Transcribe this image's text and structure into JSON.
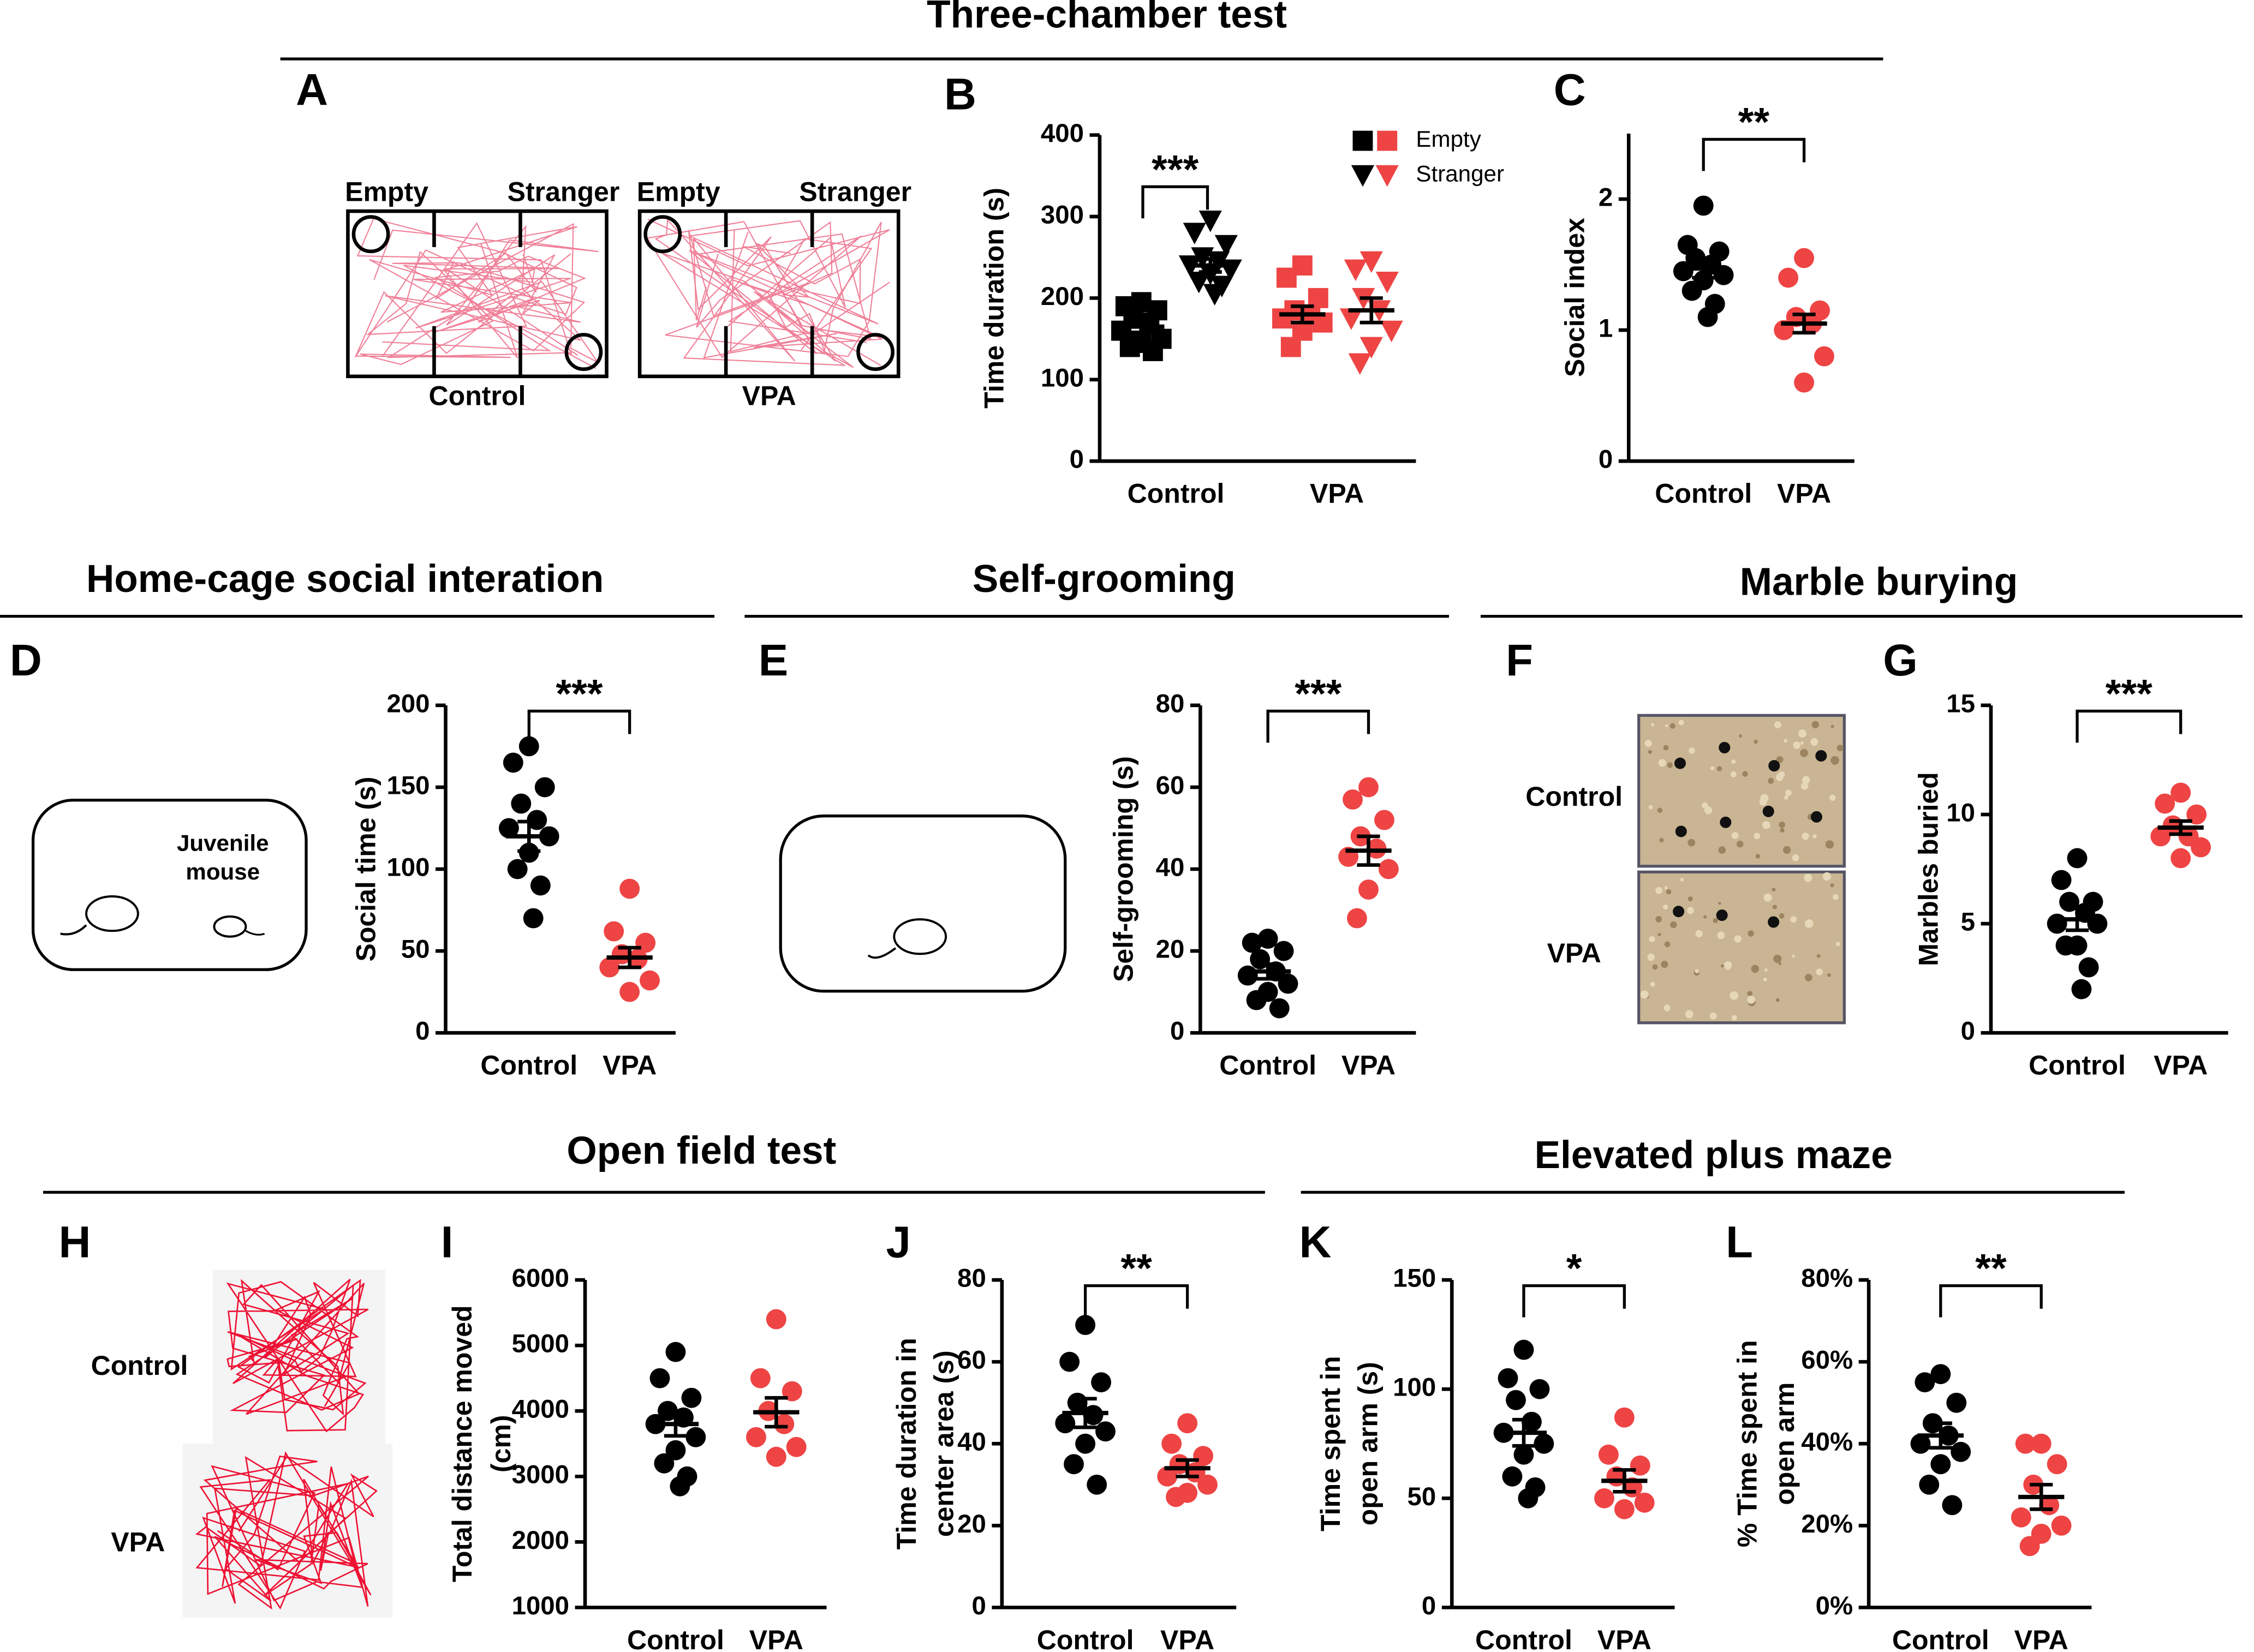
{
  "figure": {
    "sections": [
      "Three-chamber test",
      "Home-cage social interation",
      "Self-grooming",
      "Marble burying",
      "Open field test",
      "Elevated plus maze"
    ],
    "panels": {
      "A": {
        "letter": "A",
        "left": "Empty",
        "right": "Stranger",
        "captions": [
          "Control",
          "VPA"
        ]
      },
      "D": {
        "letter": "D",
        "label": [
          "Juvenile",
          "mouse"
        ]
      },
      "E": {
        "letter": "E"
      },
      "F": {
        "letter": "F",
        "rows": [
          "Control",
          "VPA"
        ]
      },
      "H": {
        "letter": "H",
        "rows": [
          "Control",
          "VPA"
        ]
      }
    }
  },
  "chart_data": [
    {
      "type": "dot",
      "panel": "B",
      "ylabel": [
        "Time duration (s)"
      ],
      "categories": [
        "Control",
        "VPA"
      ],
      "ylim": [
        0,
        400
      ],
      "yticks": [
        0,
        100,
        200,
        300,
        400
      ],
      "significance": "***",
      "series": [
        {
          "name": "Empty",
          "marker": "square",
          "colors": [
            "#000000",
            "#ee4444"
          ],
          "values": [
            [
              195,
              190,
              185,
              175,
              170,
              160,
              150,
              145,
              140,
              135
            ],
            [
              240,
              225,
              200,
              185,
              180,
              175,
              170,
              160,
              140
            ]
          ],
          "mean": [
            165,
            180
          ],
          "sem": [
            7,
            10
          ]
        },
        {
          "name": "Stranger",
          "marker": "triangle",
          "colors": [
            "#000000",
            "#ee4444"
          ],
          "values": [
            [
              295,
              280,
              265,
              250,
              245,
              240,
              235,
              230,
              220,
              215,
              205
            ],
            [
              245,
              235,
              220,
              200,
              185,
              175,
              160,
              140,
              120
            ]
          ],
          "mean": [
            240,
            185
          ],
          "sem": [
            8,
            15
          ]
        }
      ]
    },
    {
      "type": "dot",
      "panel": "C",
      "ylabel": [
        "Social index"
      ],
      "categories": [
        "Control",
        "VPA"
      ],
      "ylim": [
        0,
        2.5
      ],
      "yticks": [
        0,
        1,
        2
      ],
      "significance": "**",
      "series": [
        {
          "marker": "circle",
          "colors": [
            "#000000",
            "#ee4444"
          ],
          "values": [
            [
              1.95,
              1.65,
              1.6,
              1.55,
              1.5,
              1.45,
              1.42,
              1.38,
              1.3,
              1.2,
              1.1
            ],
            [
              1.55,
              1.4,
              1.15,
              1.1,
              1.05,
              1.0,
              0.8,
              0.6
            ]
          ],
          "mean": [
            1.47,
            1.05
          ],
          "sem": [
            0.07,
            0.07
          ]
        }
      ]
    },
    {
      "type": "dot",
      "panel": "D",
      "ylabel": [
        "Social time (s)"
      ],
      "categories": [
        "Control",
        "VPA"
      ],
      "ylim": [
        0,
        200
      ],
      "yticks": [
        0,
        50,
        100,
        150,
        200
      ],
      "significance": "***",
      "series": [
        {
          "marker": "circle",
          "colors": [
            "#000000",
            "#ee4444"
          ],
          "values": [
            [
              175,
              165,
              150,
              140,
              130,
              125,
              120,
              110,
              100,
              90,
              70
            ],
            [
              88,
              62,
              55,
              48,
              45,
              40,
              32,
              25
            ]
          ],
          "mean": [
            120,
            46
          ],
          "sem": [
            9,
            6
          ]
        }
      ]
    },
    {
      "type": "dot",
      "panel": "E",
      "ylabel": [
        "Self-grooming (s)"
      ],
      "categories": [
        "Control",
        "VPA"
      ],
      "ylim": [
        0,
        80
      ],
      "yticks": [
        0,
        20,
        40,
        60,
        80
      ],
      "significance": "***",
      "series": [
        {
          "marker": "circle",
          "colors": [
            "#000000",
            "#ee4444"
          ],
          "values": [
            [
              23,
              22,
              20,
              18,
              15,
              14,
              12,
              10,
              8,
              6
            ],
            [
              60,
              57,
              52,
              48,
              45,
              43,
              40,
              35,
              28
            ]
          ],
          "mean": [
            15,
            44.5
          ],
          "sem": [
            1.8,
            3.5
          ]
        }
      ]
    },
    {
      "type": "dot",
      "panel": "G",
      "ylabel": [
        "Marbles buried"
      ],
      "categories": [
        "Control",
        "VPA"
      ],
      "ylim": [
        0,
        15
      ],
      "yticks": [
        0,
        5,
        10,
        15
      ],
      "significance": "***",
      "series": [
        {
          "marker": "circle",
          "colors": [
            "#000000",
            "#ee4444"
          ],
          "values": [
            [
              8,
              7,
              6,
              6,
              5.5,
              5,
              5,
              4,
              4,
              3,
              2
            ],
            [
              11,
              10.5,
              10,
              9.5,
              9,
              9,
              8.5,
              8
            ]
          ],
          "mean": [
            5.2,
            9.4
          ],
          "sem": [
            0.5,
            0.3
          ]
        }
      ]
    },
    {
      "type": "dot",
      "panel": "I",
      "ylabel": [
        "Total distance moved",
        "(cm)"
      ],
      "categories": [
        "Control",
        "VPA"
      ],
      "ylim": [
        1000,
        6000
      ],
      "yticks": [
        1000,
        2000,
        3000,
        4000,
        5000,
        6000
      ],
      "series": [
        {
          "marker": "circle",
          "colors": [
            "#000000",
            "#ee4444"
          ],
          "values": [
            [
              4900,
              4500,
              4200,
              4000,
              3900,
              3800,
              3600,
              3400,
              3200,
              3000,
              2850
            ],
            [
              5400,
              4500,
              4300,
              4000,
              3800,
              3600,
              3450,
              3300
            ]
          ],
          "mean": [
            3800,
            3980
          ],
          "sem": [
            180,
            220
          ]
        }
      ]
    },
    {
      "type": "dot",
      "panel": "J",
      "ylabel": [
        "Time duration in",
        "center area (s)"
      ],
      "categories": [
        "Control",
        "VPA"
      ],
      "ylim": [
        0,
        80
      ],
      "yticks": [
        0,
        20,
        40,
        60,
        80
      ],
      "significance": "**",
      "series": [
        {
          "marker": "circle",
          "colors": [
            "#000000",
            "#ee4444"
          ],
          "values": [
            [
              69,
              60,
              55,
              50,
              47,
              45,
              43,
              40,
              35,
              30
            ],
            [
              45,
              40,
              37,
              35,
              33,
              32,
              30,
              28,
              27
            ]
          ],
          "mean": [
            47.5,
            34
          ],
          "sem": [
            3.5,
            2
          ]
        }
      ]
    },
    {
      "type": "dot",
      "panel": "K",
      "ylabel": [
        "Time spent in",
        "open arm (s)"
      ],
      "categories": [
        "Control",
        "VPA"
      ],
      "ylim": [
        0,
        150
      ],
      "yticks": [
        0,
        50,
        100,
        150
      ],
      "significance": "*",
      "series": [
        {
          "marker": "circle",
          "colors": [
            "#000000",
            "#ee4444"
          ],
          "values": [
            [
              118,
              105,
              100,
              95,
              85,
              80,
              75,
              70,
              60,
              55,
              50
            ],
            [
              87,
              70,
              65,
              60,
              55,
              50,
              48,
              45
            ]
          ],
          "mean": [
            80,
            58
          ],
          "sem": [
            6,
            5
          ]
        }
      ]
    },
    {
      "type": "dot",
      "panel": "L",
      "ylabel": [
        "% Time spent in",
        "open arm"
      ],
      "categories": [
        "Control",
        "VPA"
      ],
      "ylim": [
        0,
        80
      ],
      "yticks": [
        {
          "value": 0,
          "label": "0%"
        },
        {
          "value": 20,
          "label": "20%"
        },
        {
          "value": 40,
          "label": "40%"
        },
        {
          "value": 60,
          "label": "60%"
        },
        {
          "value": 80,
          "label": "80%"
        }
      ],
      "significance": "**",
      "series": [
        {
          "marker": "circle",
          "colors": [
            "#000000",
            "#ee4444"
          ],
          "values": [
            [
              57,
              55,
              50,
              45,
              42,
              40,
              38,
              35,
              30,
              25
            ],
            [
              40,
              40,
              35,
              30,
              25,
              22,
              20,
              18,
              15
            ]
          ],
          "mean": [
            42,
            27
          ],
          "sem": [
            3,
            3
          ]
        }
      ]
    }
  ]
}
